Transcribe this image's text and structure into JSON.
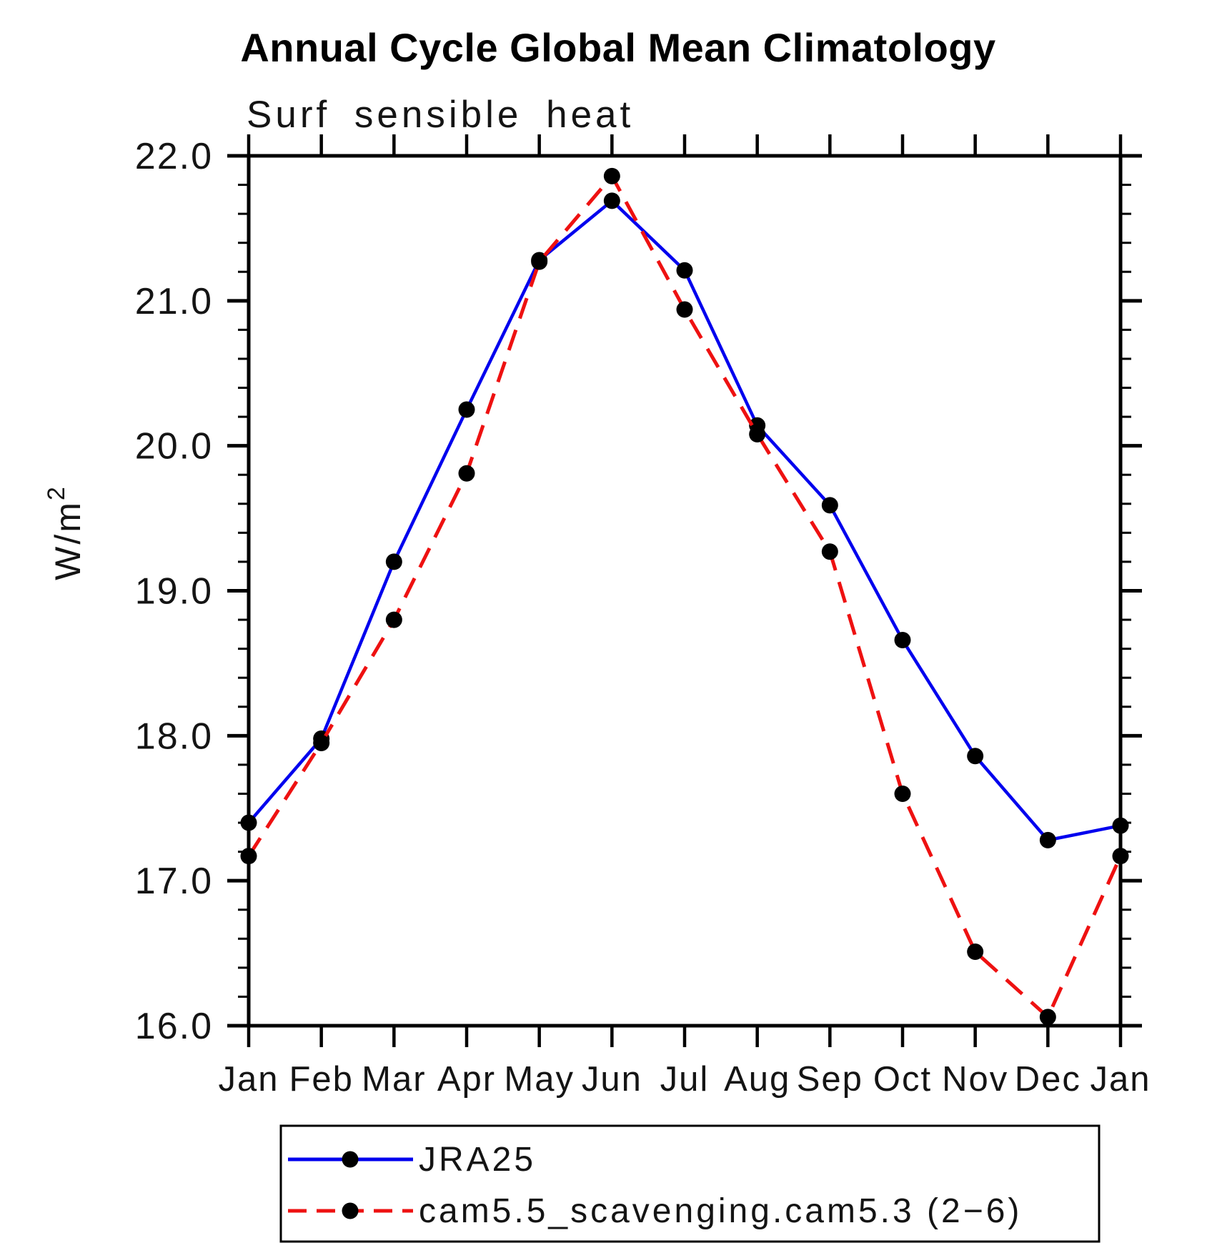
{
  "chart_data": {
    "type": "line",
    "title": "Annual Cycle Global Mean Climatology",
    "subtitle": "Surf sensible heat",
    "ylabel_base": "W/m",
    "ylabel_sup": "2",
    "x_categories": [
      "Jan",
      "Feb",
      "Mar",
      "Apr",
      "May",
      "Jun",
      "Jul",
      "Aug",
      "Sep",
      "Oct",
      "Nov",
      "Dec",
      "Jan"
    ],
    "ylim": [
      16.0,
      22.0
    ],
    "y_major_step": 1.0,
    "y_minor_step": 0.2,
    "y_tick_labels": [
      "16.0",
      "17.0",
      "18.0",
      "19.0",
      "20.0",
      "21.0",
      "22.0"
    ],
    "grid": "off",
    "legend_position": "bottom-left-box",
    "axis_color": "#000000",
    "marker_color": "#000000",
    "series": [
      {
        "name": "JRA25",
        "color": "#0000ee",
        "line_style": "solid",
        "marker": "black-dot",
        "values": [
          17.4,
          17.98,
          19.2,
          20.25,
          21.28,
          21.69,
          21.21,
          20.14,
          19.59,
          18.66,
          17.86,
          17.28,
          17.38
        ]
      },
      {
        "name": "cam5.5_scavenging.cam5.3 (2−6)",
        "color": "#ee1111",
        "line_style": "dashed",
        "marker": "black-dot",
        "values": [
          17.17,
          17.95,
          18.8,
          19.81,
          21.27,
          21.86,
          20.94,
          20.08,
          19.27,
          17.6,
          16.51,
          16.06,
          17.17
        ]
      }
    ]
  }
}
